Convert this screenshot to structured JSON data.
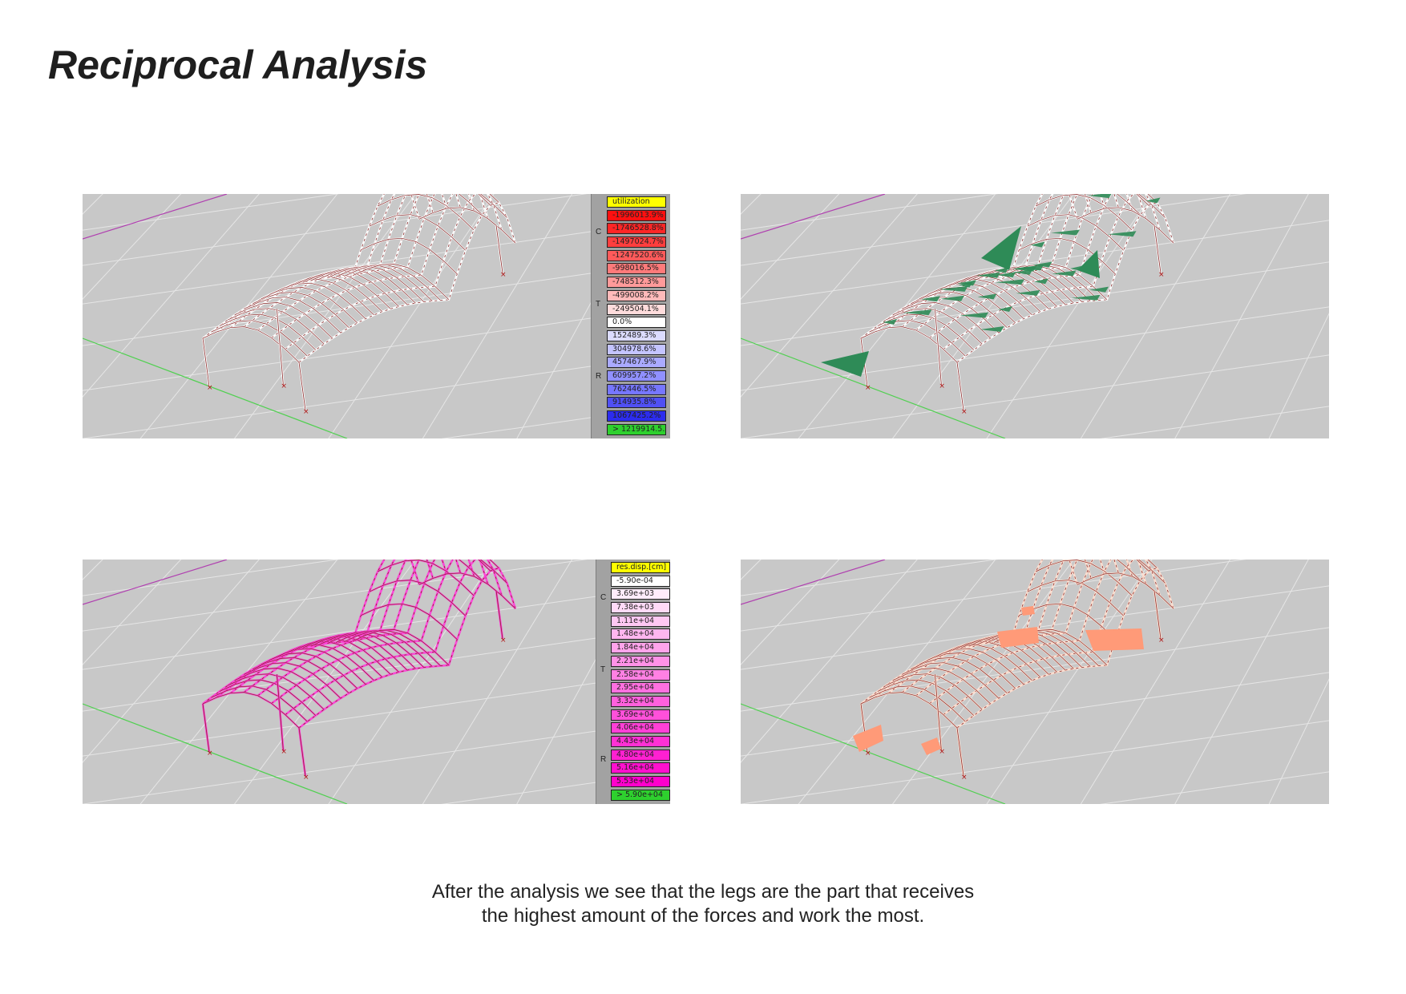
{
  "page": {
    "title": "Reciprocal Analysis"
  },
  "caption": {
    "line1": "After the analysis we see that the legs are the part that receives",
    "line2": "the highest amount of the forces and work the most."
  },
  "colors": {
    "background": "#c8c8c8",
    "grid": "#e6e6e6",
    "x_axis": "#b040b0",
    "y_axis": "#50d050",
    "mesh": "#8a2a2a",
    "beam_white": "#ffffff",
    "reaction": "#2e8b57",
    "displacement": "#ff00dd",
    "force": "#ff9a78"
  },
  "panels": [
    {
      "name": "utilization-view",
      "overlay": "none",
      "mesh_tint": "#ffd0d0"
    },
    {
      "name": "reaction-view",
      "overlay": "green-arrows",
      "mesh_tint": "#ffd0d0"
    },
    {
      "name": "displacement-view",
      "overlay": "none",
      "mesh_tint": "#ff3cd8"
    },
    {
      "name": "force-view",
      "overlay": "orange-bars",
      "mesh_tint": "#ffe0d0"
    }
  ],
  "legend_utilization": {
    "header": "utilization",
    "side_labels": [
      "C",
      "T",
      "R"
    ],
    "items": [
      {
        "label": "-1996013.9%",
        "color": "#ff1010"
      },
      {
        "label": "-1746528.8%",
        "color": "#ff2626"
      },
      {
        "label": "-1497024.7%",
        "color": "#ff3e3e"
      },
      {
        "label": "-1247520.6%",
        "color": "#ff5a5a"
      },
      {
        "label": "-998016.5%",
        "color": "#ff7a7a"
      },
      {
        "label": "-748512.3%",
        "color": "#ff9a9a"
      },
      {
        "label": "-499008.2%",
        "color": "#ffbaba"
      },
      {
        "label": "-249504.1%",
        "color": "#ffdcdc"
      },
      {
        "label": "0.0%",
        "color": "#ffffff"
      },
      {
        "label": "152489.3%",
        "color": "#dcdcff"
      },
      {
        "label": "304978.6%",
        "color": "#c4c4ff"
      },
      {
        "label": "457467.9%",
        "color": "#aaaaff"
      },
      {
        "label": "609957.2%",
        "color": "#9090ff"
      },
      {
        "label": "762446.5%",
        "color": "#7676ff"
      },
      {
        "label": "914935.8%",
        "color": "#5050f4"
      },
      {
        "label": "1067425.2%",
        "color": "#2c2cee"
      },
      {
        "label": "> 1219914.5...",
        "color": "#2ed02e"
      }
    ]
  },
  "legend_displacement": {
    "header": "res.disp.[cm]",
    "side_labels": [
      "C",
      "T",
      "R"
    ],
    "items": [
      {
        "label": "-5.90e-04",
        "color": "#ffffff"
      },
      {
        "label": "3.69e+03",
        "color": "#ffecfb"
      },
      {
        "label": "7.38e+03",
        "color": "#ffdaf7"
      },
      {
        "label": "1.11e+04",
        "color": "#ffc8f3"
      },
      {
        "label": "1.48e+04",
        "color": "#ffb6ef"
      },
      {
        "label": "1.84e+04",
        "color": "#ffa4eb"
      },
      {
        "label": "2.21e+04",
        "color": "#ff92e7"
      },
      {
        "label": "2.58e+04",
        "color": "#ff80e3"
      },
      {
        "label": "2.95e+04",
        "color": "#ff70e0"
      },
      {
        "label": "3.32e+04",
        "color": "#ff60dd"
      },
      {
        "label": "3.69e+04",
        "color": "#ff50da"
      },
      {
        "label": "4.06e+04",
        "color": "#ff40d7"
      },
      {
        "label": "4.43e+04",
        "color": "#ff30d4"
      },
      {
        "label": "4.80e+04",
        "color": "#ff20d1"
      },
      {
        "label": "5.16e+04",
        "color": "#ff10ce"
      },
      {
        "label": "5.53e+04",
        "color": "#ff00cc"
      },
      {
        "label": "> 5.90e+04",
        "color": "#2ed02e"
      }
    ]
  }
}
